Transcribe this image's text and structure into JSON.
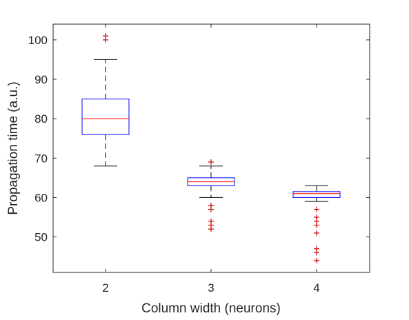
{
  "chart_data": {
    "type": "box",
    "xlabel": "Column width (neurons)",
    "ylabel": "Propagation time (a.u.)",
    "categories": [
      "2",
      "3",
      "4"
    ],
    "ylim": [
      41,
      104
    ],
    "yticks": [
      50,
      60,
      70,
      80,
      90,
      100
    ],
    "grid": false,
    "boxes": [
      {
        "category": "2",
        "whisker_low": 68,
        "q1": 76,
        "median": 80,
        "q3": 85,
        "whisker_high": 95,
        "outliers": [
          100,
          101
        ]
      },
      {
        "category": "3",
        "whisker_low": 60,
        "q1": 63,
        "median": 64,
        "q3": 65,
        "whisker_high": 68,
        "outliers": [
          52,
          53,
          54,
          57,
          58,
          69
        ]
      },
      {
        "category": "4",
        "whisker_low": 59,
        "q1": 60,
        "median": 61,
        "q3": 61.5,
        "whisker_high": 63,
        "outliers": [
          44,
          46,
          47,
          51,
          53,
          54,
          55,
          57
        ]
      }
    ],
    "colors": {
      "box": "#0000ff",
      "median": "#ff0000",
      "whisker": "#000000",
      "outlier": "#cc0000",
      "axes": "#262626"
    }
  }
}
